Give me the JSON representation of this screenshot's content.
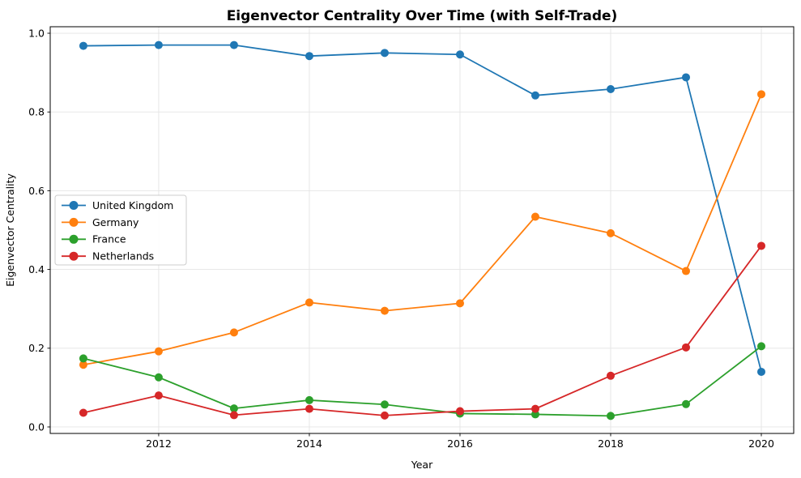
{
  "chart_data": {
    "type": "line",
    "title": "Eigenvector Centrality Over Time (with Self-Trade)",
    "xlabel": "Year",
    "ylabel": "Eigenvector Centrality",
    "x": [
      2011,
      2012,
      2013,
      2014,
      2015,
      2016,
      2017,
      2018,
      2019,
      2020
    ],
    "xticks": [
      2012,
      2014,
      2016,
      2018,
      2020
    ],
    "yticks": [
      0.0,
      0.2,
      0.4,
      0.6,
      0.8,
      1.0
    ],
    "xlim": [
      2010.56,
      2020.43
    ],
    "ylim": [
      -0.0165,
      1.0165
    ],
    "grid": true,
    "legend_loc": "center left",
    "series": [
      {
        "name": "United Kingdom",
        "color": "#1f77b4",
        "values": [
          0.968,
          0.97,
          0.97,
          0.942,
          0.95,
          0.946,
          0.842,
          0.858,
          0.888,
          0.14
        ]
      },
      {
        "name": "Germany",
        "color": "#ff7f0e",
        "values": [
          0.158,
          0.192,
          0.24,
          0.316,
          0.295,
          0.314,
          0.534,
          0.492,
          0.396,
          0.845
        ]
      },
      {
        "name": "France",
        "color": "#2ca02c",
        "values": [
          0.174,
          0.126,
          0.047,
          0.068,
          0.057,
          0.034,
          0.032,
          0.028,
          0.058,
          0.205
        ]
      },
      {
        "name": "Netherlands",
        "color": "#d62728",
        "values": [
          0.036,
          0.08,
          0.03,
          0.046,
          0.029,
          0.04,
          0.046,
          0.13,
          0.202,
          0.46
        ]
      }
    ]
  }
}
